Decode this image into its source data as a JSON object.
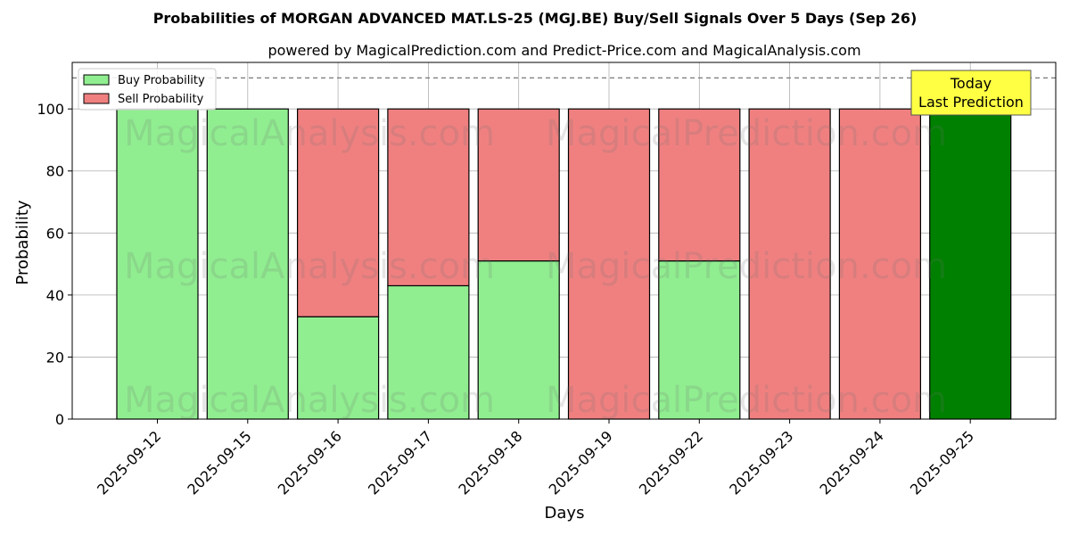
{
  "chart_data": {
    "type": "bar",
    "stacked": true,
    "title": "Probabilities of MORGAN ADVANCED MAT.LS-25 (MGJ.BE) Buy/Sell Signals Over 5 Days (Sep 26)",
    "subtitle": "powered by MagicalPrediction.com and Predict-Price.com and MagicalAnalysis.com",
    "xlabel": "Days",
    "ylabel": "Probability",
    "ylim": [
      0,
      115
    ],
    "yticks": [
      0,
      20,
      40,
      60,
      80,
      100
    ],
    "reference_line": 110,
    "grid": true,
    "legend_position": "top-left",
    "categories": [
      "2025-09-12",
      "2025-09-15",
      "2025-09-16",
      "2025-09-17",
      "2025-09-18",
      "2025-09-19",
      "2025-09-22",
      "2025-09-23",
      "2025-09-24",
      "2025-09-25"
    ],
    "series": [
      {
        "name": "Buy Probability",
        "color": "#90ee90",
        "values": [
          100,
          100,
          33,
          43,
          51,
          0,
          51,
          0,
          0,
          100
        ]
      },
      {
        "name": "Sell Probability",
        "color": "#f08080",
        "values": [
          0,
          0,
          67,
          57,
          49,
          100,
          49,
          100,
          100,
          0
        ]
      }
    ],
    "highlight": {
      "index": 9,
      "color": "#008000"
    },
    "annotation": {
      "line1": "Today",
      "line2": "Last Prediction",
      "background": "#ffff44"
    },
    "watermarks": [
      "MagicalAnalysis.com",
      "MagicalPrediction.com",
      "MagicalAnalysis.com",
      "MagicalPrediction.com",
      "MagicalAnalysis.com",
      "MagicalPrediction.com"
    ]
  }
}
